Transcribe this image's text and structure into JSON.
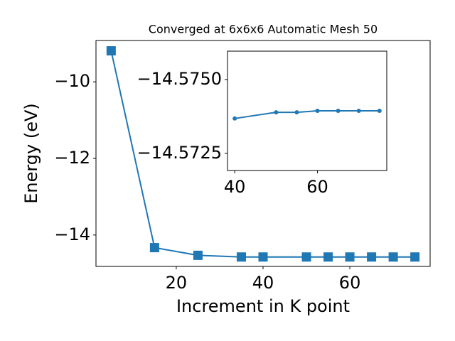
{
  "chart_data": [
    {
      "type": "line",
      "title": "Converged at 6x6x6 Automatic Mesh 50",
      "x_label": "Increment in K point",
      "y_label": "Energy (eV)",
      "marker": "square",
      "color": "#1f77b4",
      "x": [
        5,
        15,
        25,
        35,
        40,
        50,
        55,
        60,
        65,
        70,
        75
      ],
      "values": [
        -9.19,
        -14.33,
        -14.53,
        -14.574,
        -14.5737,
        -14.5739,
        -14.5739,
        -14.5739,
        -14.5739,
        -14.5739,
        -14.5739
      ],
      "xlim": [
        1.5,
        78.5
      ],
      "ylim": [
        -14.82,
        -8.92
      ],
      "xticks": [
        20,
        40,
        60
      ],
      "yticks": [
        {
          "value": -10,
          "label": "−10"
        },
        {
          "value": -12,
          "label": "−12"
        },
        {
          "value": -14,
          "label": "−14"
        }
      ]
    },
    {
      "type": "line",
      "marker": "circle",
      "color": "#1f77b4",
      "x": [
        40,
        50,
        55,
        60,
        65,
        70,
        75
      ],
      "values": [
        -14.57368,
        -14.57389,
        -14.57389,
        -14.57394,
        -14.57394,
        -14.57394,
        -14.57394
      ],
      "xlim": [
        38.25,
        76.75
      ],
      "ylim": [
        -14.57192,
        -14.57596
      ],
      "xticks": [
        40,
        60
      ],
      "yticks": [
        {
          "value": -14.575,
          "label": "−14.5750"
        },
        {
          "value": -14.5725,
          "label": "−14.5725"
        }
      ]
    }
  ]
}
